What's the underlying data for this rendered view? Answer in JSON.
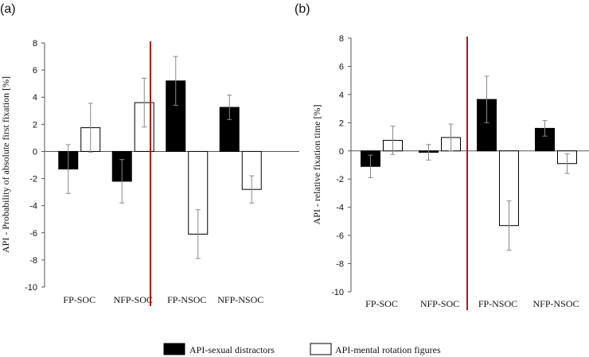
{
  "chart_data": [
    {
      "panel_label": "(a)",
      "type": "bar",
      "categories": [
        "FP-SOC",
        "NFP-SOC",
        "FP-NSOC",
        "NFP-NSOC"
      ],
      "series": [
        {
          "name": "API-sexual distractors",
          "values": [
            -1.3,
            -2.2,
            5.2,
            3.25
          ],
          "errors": [
            1.8,
            1.6,
            1.8,
            0.9
          ],
          "color": "#000000"
        },
        {
          "name": "API-mental rotation figures",
          "values": [
            1.75,
            3.6,
            -6.1,
            -2.8
          ],
          "errors": [
            1.8,
            1.8,
            1.8,
            1.0
          ],
          "color": "#ffffff"
        }
      ],
      "ylabel": "API - Probability of absolute first fixation [%]",
      "ylim": [
        -10,
        8
      ],
      "yticks": [
        {
          "value": 8,
          "label": "8"
        },
        {
          "value": 6,
          "label": "6"
        },
        {
          "value": 4,
          "label": "4"
        },
        {
          "value": 2,
          "label": "2"
        },
        {
          "value": 0,
          "label": "0"
        },
        {
          "value": -2,
          "label": "-2"
        },
        {
          "value": -4,
          "label": "-4"
        },
        {
          "value": -6,
          "label": "-6"
        },
        {
          "value": -8,
          "label": "-8"
        },
        {
          "value": -10,
          "label": "-10"
        }
      ],
      "divider_after_category": 2
    },
    {
      "panel_label": "(b)",
      "type": "bar",
      "categories": [
        "FP-SOC",
        "NFP-SOC",
        "FP-NSOC",
        "NFP-NSOC"
      ],
      "series": [
        {
          "name": "API-sexual distractors",
          "values": [
            -1.1,
            -0.1,
            3.65,
            1.6
          ],
          "errors": [
            0.8,
            0.55,
            1.65,
            0.55
          ],
          "color": "#000000"
        },
        {
          "name": "API-mental rotation figures",
          "values": [
            0.75,
            0.95,
            -5.3,
            -0.9
          ],
          "errors": [
            1.0,
            0.95,
            1.75,
            0.7
          ],
          "color": "#ffffff"
        }
      ],
      "ylabel": "API - relative fixation time [%]",
      "ylim": [
        -10,
        8
      ],
      "yticks": [
        {
          "value": 8,
          "label": "8"
        },
        {
          "value": 6,
          "label": "6"
        },
        {
          "value": 4,
          "label": "4"
        },
        {
          "value": 2,
          "label": "2"
        },
        {
          "value": 0,
          "label": "0"
        },
        {
          "value": -2,
          "label": "-2"
        },
        {
          "value": -4,
          "label": "-4"
        },
        {
          "value": -6,
          "label": "-6"
        },
        {
          "value": -8,
          "label": "-8"
        },
        {
          "value": -10,
          "label": "-10"
        }
      ],
      "divider_after_category": 2
    }
  ],
  "legend": {
    "items": [
      {
        "label": "API-sexual distractors",
        "fill": "#000000"
      },
      {
        "label": "API-mental rotation figures",
        "fill": "#ffffff"
      }
    ]
  },
  "colors": {
    "divider": "#b01818",
    "axis": "#555555",
    "error_bar": "#888888",
    "text": "#111111"
  }
}
